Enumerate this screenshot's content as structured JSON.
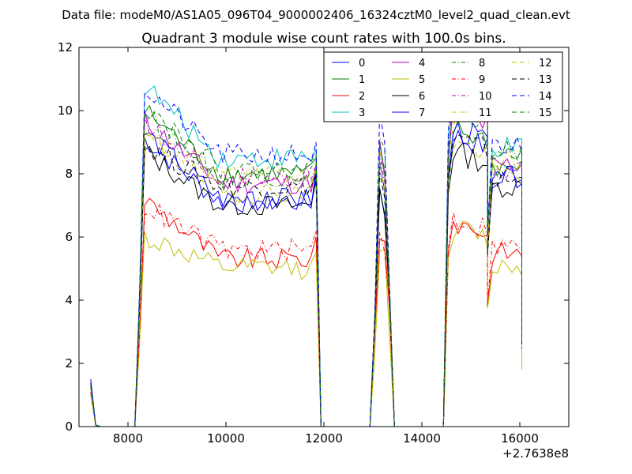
{
  "figure": {
    "suptitle": "Data file: modeM0/AS1A05_096T04_9000002406_16324cztM0_level2_quad_clean.evt",
    "offset_label": "+2.7638e8"
  },
  "chart_data": {
    "type": "line",
    "title": "Quadrant 3 module wise count rates with 100.0s bins.",
    "xlabel": "",
    "ylabel": "",
    "xlim": [
      7000,
      17000
    ],
    "ylim": [
      0,
      12
    ],
    "x_offset": 276380000,
    "xticks": [
      8000,
      10000,
      12000,
      14000,
      16000
    ],
    "xtick_labels": [
      "8000",
      "10000",
      "12000",
      "14000",
      "16000"
    ],
    "yticks": [
      0,
      2,
      4,
      6,
      8,
      10,
      12
    ],
    "ytick_labels": [
      "0",
      "2",
      "4",
      "6",
      "8",
      "10",
      "12"
    ],
    "grid": false,
    "legend_placement": "top-right",
    "legend_columns": 4,
    "segments": [
      {
        "t0": 7240,
        "n": 2
      },
      {
        "t0": 8240,
        "n": 36
      },
      {
        "t0": 13140,
        "n": 3
      },
      {
        "t0": 14640,
        "n": 14
      },
      {
        "t0": 15240,
        "n": 9
      }
    ],
    "series": [
      {
        "name": "0",
        "color": "#0000ff",
        "dash": "solid",
        "gap_base": 0.08,
        "edge": [
          1.5,
          8.2,
          2.6
        ],
        "low": 1.0,
        "levels": [
          9.1,
          7.1,
          7.5,
          9.2,
          8.0
        ]
      },
      {
        "name": "1",
        "color": "#008000",
        "dash": "solid",
        "gap_base": 0.08,
        "edge": [
          1.3,
          8.5,
          2.5
        ],
        "low": 0.9,
        "levels": [
          10.0,
          8.0,
          8.7,
          9.4,
          8.2
        ]
      },
      {
        "name": "2",
        "color": "#ff0000",
        "dash": "solid",
        "gap_base": 0.06,
        "edge": [
          1.1,
          6.0,
          2.3
        ],
        "low": 0.8,
        "levels": [
          7.2,
          5.3,
          6.2,
          6.5,
          5.5
        ]
      },
      {
        "name": "3",
        "color": "#00bfbf",
        "dash": "solid",
        "gap_base": 0.08,
        "edge": [
          1.4,
          8.8,
          2.7
        ],
        "low": 1.0,
        "levels": [
          10.8,
          8.5,
          9.0,
          10.8,
          8.8
        ]
      },
      {
        "name": "4",
        "color": "#bf00bf",
        "dash": "solid",
        "gap_base": 0.08,
        "edge": [
          1.3,
          8.3,
          2.6
        ],
        "low": 0.9,
        "levels": [
          9.7,
          7.7,
          8.8,
          9.9,
          8.3
        ]
      },
      {
        "name": "5",
        "color": "#bfbf00",
        "dash": "solid",
        "gap_base": 0.06,
        "edge": [
          1.0,
          5.5,
          1.8
        ],
        "low": 0.8,
        "levels": [
          6.0,
          5.0,
          5.9,
          6.3,
          5.1
        ]
      },
      {
        "name": "6",
        "color": "#000000",
        "dash": "solid",
        "gap_base": 0.08,
        "edge": [
          1.3,
          7.8,
          2.5
        ],
        "low": 0.9,
        "levels": [
          8.7,
          7.0,
          7.6,
          8.7,
          7.6
        ]
      },
      {
        "name": "7",
        "color": "#0000ff",
        "dash": "solid",
        "gap_base": 0.08,
        "edge": [
          1.4,
          8.0,
          2.6
        ],
        "low": 1.0,
        "levels": [
          9.3,
          7.2,
          8.2,
          9.4,
          7.9
        ]
      },
      {
        "name": "8",
        "color": "#008000",
        "dash": "dashdot",
        "gap_base": 0.08,
        "edge": [
          1.3,
          8.4,
          2.7
        ],
        "low": 0.9,
        "levels": [
          9.9,
          7.9,
          9.5,
          10.3,
          8.6
        ]
      },
      {
        "name": "9",
        "color": "#ff0000",
        "dash": "dashdot",
        "gap_base": 0.06,
        "edge": [
          1.1,
          6.2,
          2.4
        ],
        "low": 0.8,
        "levels": [
          7.0,
          5.6,
          6.3,
          6.6,
          5.7
        ]
      },
      {
        "name": "10",
        "color": "#bf00bf",
        "dash": "dashdot",
        "gap_base": 0.08,
        "edge": [
          1.3,
          8.3,
          2.6
        ],
        "low": 0.9,
        "levels": [
          9.6,
          7.9,
          8.5,
          10.2,
          8.1
        ]
      },
      {
        "name": "11",
        "color": "#bfbf00",
        "dash": "dashdot",
        "gap_base": 0.08,
        "edge": [
          1.2,
          8.1,
          2.5
        ],
        "low": 0.9,
        "levels": [
          9.1,
          8.0,
          8.4,
          9.9,
          8.4
        ]
      },
      {
        "name": "12",
        "color": "#bfbf00",
        "dash": "dashed",
        "gap_base": 0.08,
        "edge": [
          1.2,
          8.2,
          2.6
        ],
        "low": 0.9,
        "levels": [
          9.2,
          7.4,
          8.5,
          9.0,
          8.0
        ]
      },
      {
        "name": "13",
        "color": "#000000",
        "dash": "dashed",
        "gap_base": 0.08,
        "edge": [
          1.3,
          8.0,
          2.6
        ],
        "low": 0.9,
        "levels": [
          8.9,
          7.6,
          8.0,
          9.1,
          7.8
        ]
      },
      {
        "name": "14",
        "color": "#0000ff",
        "dash": "dashed",
        "gap_base": 0.08,
        "edge": [
          1.4,
          9.0,
          2.8
        ],
        "low": 1.0,
        "levels": [
          10.7,
          8.6,
          9.7,
          11.0,
          8.9
        ]
      },
      {
        "name": "15",
        "color": "#008000",
        "dash": "dashed",
        "gap_base": 0.08,
        "edge": [
          1.3,
          8.6,
          2.7
        ],
        "low": 0.9,
        "levels": [
          10.2,
          8.1,
          9.2,
          10.0,
          8.7
        ]
      }
    ]
  }
}
